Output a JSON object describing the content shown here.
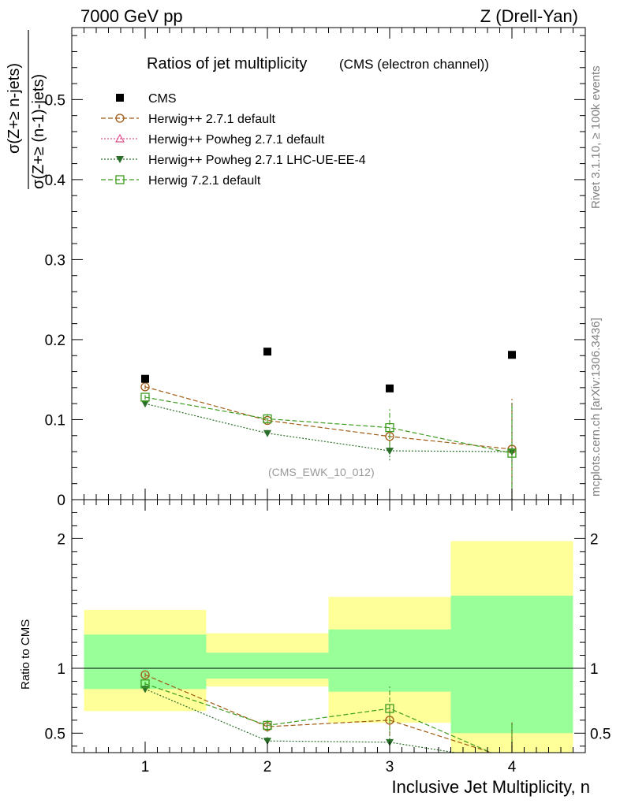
{
  "header": {
    "left": "7000 GeV pp",
    "right": "Z (Drell-Yan)"
  },
  "side_labels": {
    "rivet": "Rivet 3.1.10, ≥ 100k events",
    "mcplots": "mcplots.cern.ch [arXiv:1306.3436]"
  },
  "colors": {
    "data": "#000000",
    "herwigpp": "#a05a14",
    "powheg": "#e0508c",
    "powheg_lhc": "#2a6e2a",
    "herwig7": "#3c9c1e",
    "band_inner": "#99ff99",
    "band_outer": "#ffff99"
  },
  "chart_data": [
    {
      "type": "scatter",
      "title": "Ratios of jet multiplicity",
      "subtitle": "(CMS (electron channel))",
      "ylabel_numerator": "σ(Z+≥ n-jets)",
      "ylabel_denominator": "σ(Z+≥ (n-1)-jets)",
      "xlabel": "",
      "watermark": "(CMS_EWK_10_012)",
      "xlim": [
        0.4,
        4.6
      ],
      "ylim": [
        0,
        0.59
      ],
      "y_ticks": [
        {
          "v": 0.1,
          "label": "0.1"
        },
        {
          "v": 0.2,
          "label": "0.2"
        },
        {
          "v": 0.3,
          "label": "0.3"
        },
        {
          "v": 0.4,
          "label": "0.4"
        },
        {
          "v": 0.5,
          "label": "0.5"
        },
        {
          "v": 0,
          "label": "0"
        }
      ],
      "grid": false,
      "legend_position": "top-left",
      "x": [
        1,
        2,
        3,
        4
      ],
      "series": [
        {
          "name": "CMS",
          "key": "data",
          "values": [
            0.151,
            0.185,
            0.139,
            0.181
          ],
          "marker": "square-filled"
        },
        {
          "name": "Herwig++ 2.7.1 default",
          "key": "herwigpp",
          "values": [
            0.141,
            0.099,
            0.079,
            0.063
          ],
          "errors": [
            0.003,
            0.004,
            0.011,
            0.063
          ],
          "marker": "circle-open",
          "dash": "dashed"
        },
        {
          "name": "Herwig++ Powheg 2.7.1 default",
          "key": "powheg",
          "values": [],
          "marker": "triangle-open",
          "dash": "dotted"
        },
        {
          "name": "Herwig++ Powheg 2.7.1 LHC-UE-EE-4",
          "key": "powheg_lhc",
          "values": [
            0.12,
            0.083,
            0.061,
            0.06
          ],
          "errors": [
            0.003,
            0.004,
            0.012,
            0.06
          ],
          "marker": "triangle-down-filled",
          "dash": "dotted"
        },
        {
          "name": "Herwig 7.2.1 default",
          "key": "herwig7",
          "values": [
            0.128,
            0.101,
            0.09,
            0.058
          ],
          "errors": [
            0.003,
            0.006,
            0.023,
            0.062
          ],
          "marker": "square-open",
          "dash": "dashed"
        }
      ]
    },
    {
      "type": "scatter",
      "ylabel": "Ratio to CMS",
      "xlabel": "Inclusive Jet Multiplicity, n",
      "xlim": [
        0.4,
        4.6
      ],
      "ylim": [
        0.35,
        2.3
      ],
      "x_ticks": [
        {
          "v": 1,
          "label": "1"
        },
        {
          "v": 2,
          "label": "2"
        },
        {
          "v": 3,
          "label": "3"
        },
        {
          "v": 4,
          "label": "4"
        }
      ],
      "y_ticks": [
        {
          "v": 0.5,
          "label": "0.5"
        },
        {
          "v": 1,
          "label": "1"
        },
        {
          "v": 2,
          "label": "2"
        }
      ],
      "reference_line": 1,
      "bands": [
        {
          "x0": 0.5,
          "x1": 1.5,
          "inner": [
            0.84,
            1.26
          ],
          "outer": [
            0.67,
            1.45
          ]
        },
        {
          "x0": 1.5,
          "x1": 2.5,
          "inner": [
            0.92,
            1.12
          ],
          "outer": [
            0.86,
            1.27
          ]
        },
        {
          "x0": 2.5,
          "x1": 3.5,
          "inner": [
            0.82,
            1.3
          ],
          "outer": [
            0.58,
            1.55
          ]
        },
        {
          "x0": 3.5,
          "x1": 4.5,
          "inner": [
            0.5,
            1.56
          ],
          "outer": [
            0.35,
            1.98
          ]
        }
      ],
      "series": [
        {
          "name": "Herwig++ 2.7.1 default",
          "key": "herwigpp",
          "values": [
            0.95,
            0.55,
            0.6,
            0.3
          ],
          "errors": [
            0.02,
            0.03,
            0.12,
            0.3
          ],
          "marker": "circle-open",
          "dash": "dashed"
        },
        {
          "name": "Herwig++ Powheg 2.7.1 LHC-UE-EE-4",
          "key": "powheg_lhc",
          "values": [
            0.84,
            0.44,
            0.43,
            0.28
          ],
          "errors": [
            0.02,
            0.03,
            0.1,
            0.3
          ],
          "marker": "triangle-down-filled",
          "dash": "dotted"
        },
        {
          "name": "Herwig 7.2.1 default",
          "key": "herwig7",
          "values": [
            0.88,
            0.56,
            0.69,
            0.28
          ],
          "errors": [
            0.02,
            0.05,
            0.17,
            0.3
          ],
          "marker": "square-open",
          "dash": "dashed"
        }
      ]
    }
  ]
}
